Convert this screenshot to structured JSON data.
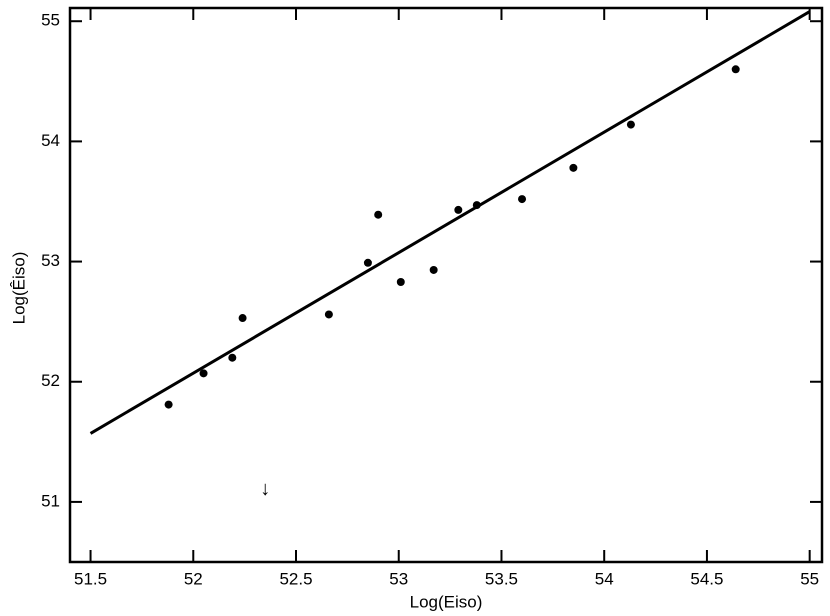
{
  "chart_data": {
    "type": "scatter",
    "xlabel": "Log(Eiso)",
    "ylabel": "Log(Êiso)",
    "x": [
      51.88,
      52.05,
      52.19,
      52.24,
      52.66,
      52.85,
      52.9,
      53.01,
      53.17,
      53.29,
      53.38,
      53.6,
      53.85,
      54.13,
      54.64
    ],
    "values": [
      51.81,
      52.07,
      52.2,
      52.53,
      52.56,
      52.99,
      53.39,
      52.83,
      52.93,
      53.43,
      53.47,
      53.52,
      53.78,
      54.14,
      54.6
    ],
    "color": "#000000",
    "fit": {
      "x": [
        51.5,
        55
      ],
      "values": [
        51.57,
        55.08
      ],
      "color": "#000000"
    },
    "annotations": [
      {
        "text": "↓",
        "x": 52.35,
        "y": 51.1
      }
    ],
    "xlim": [
      51.4,
      55.06
    ],
    "ylim": [
      50.5,
      55.11
    ],
    "xticks": [
      51.5,
      52,
      52.5,
      53,
      53.5,
      54,
      54.5,
      55
    ],
    "yticks": [
      51,
      52,
      53,
      54,
      55
    ],
    "grid": false
  }
}
